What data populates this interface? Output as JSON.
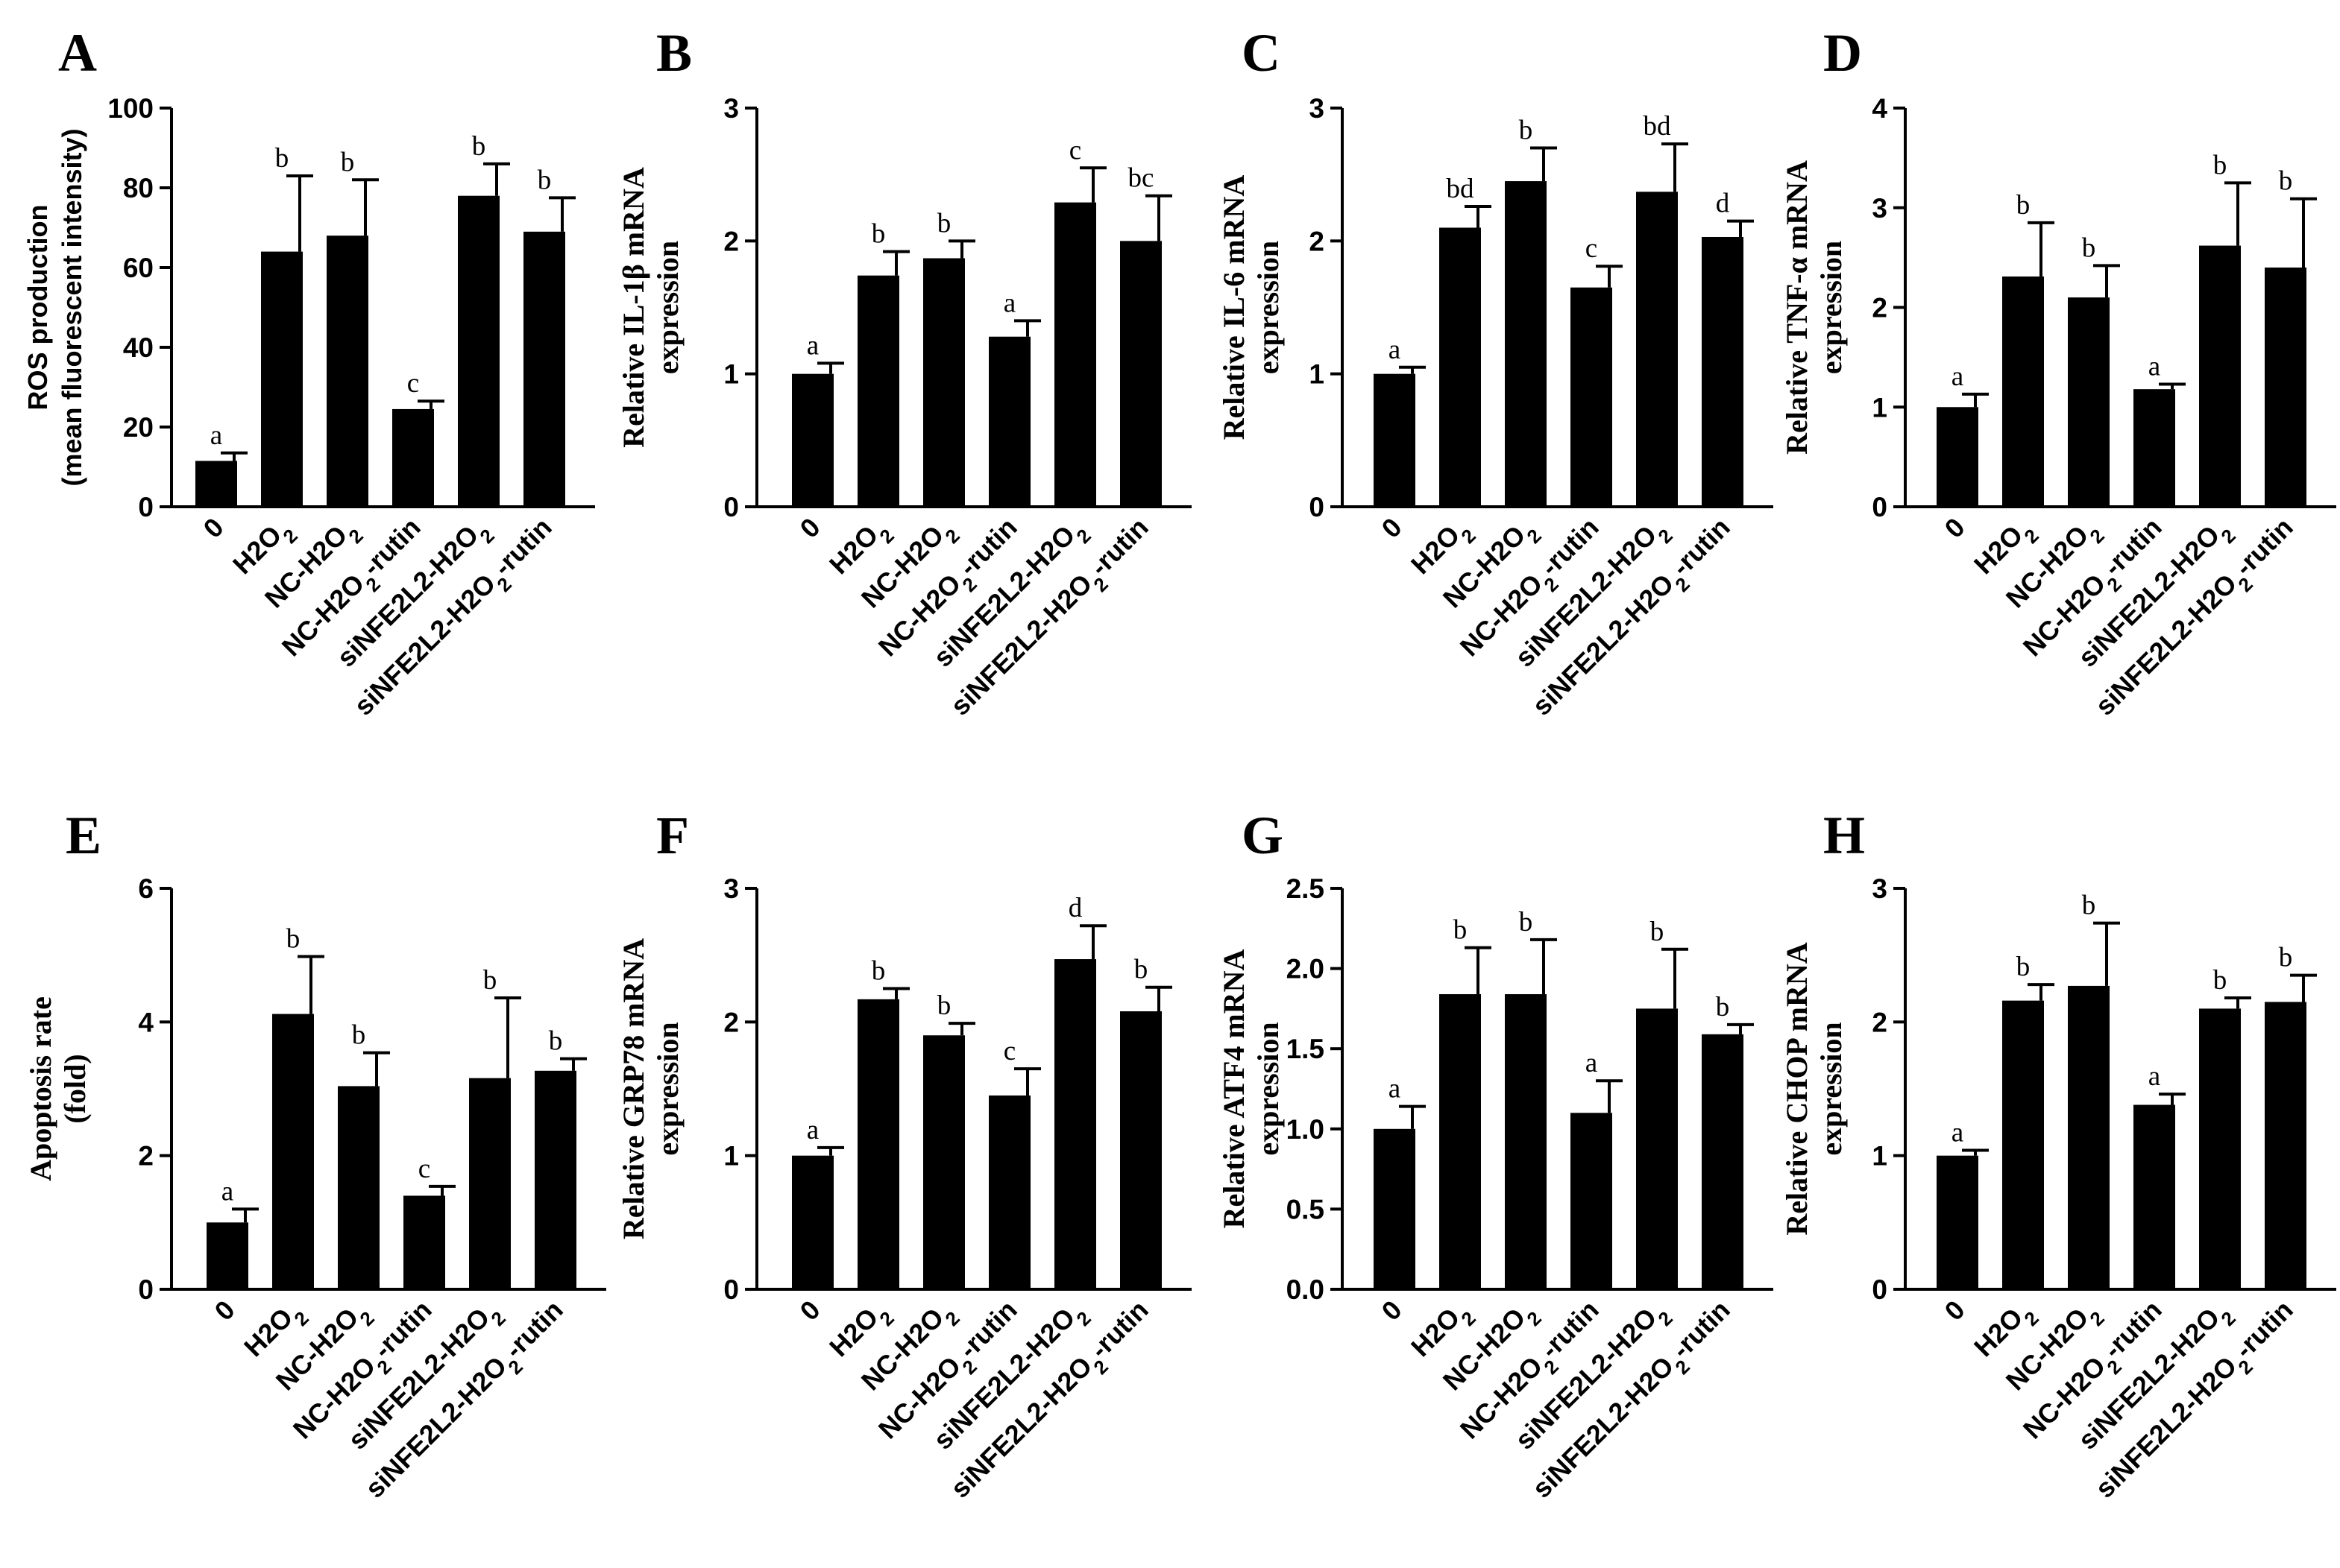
{
  "figure": {
    "categories": [
      "0",
      "H2O2",
      "NC-H2O2",
      "NC-H2O2-rutin",
      "siNFE2L2-H2O2",
      "siNFE2L2-H2O2-rutin"
    ]
  },
  "chart_data": [
    {
      "type": "bar",
      "panel": "A",
      "ylabel": [
        "ROS production",
        "(mean fluorescent intensity)"
      ],
      "categories": [
        "0",
        "H2O2",
        "NC-H2O2",
        "NC-H2O2-rutin",
        "siNFE2L2-H2O2",
        "siNFE2L2-H2O2-rutin"
      ],
      "values": [
        11.5,
        64,
        68,
        24.5,
        78,
        69
      ],
      "errors": [
        2,
        19,
        14,
        2,
        8,
        8.5
      ],
      "significance": [
        "a",
        "b",
        "b",
        "c",
        "b",
        "b"
      ],
      "ylim": [
        0,
        100
      ],
      "yticks": [
        "0",
        "20",
        "40",
        "60",
        "80",
        "100"
      ]
    },
    {
      "type": "bar",
      "panel": "B",
      "ylabel": [
        "Relative IL-1β mRNA",
        "expression"
      ],
      "categories": [
        "0",
        "H2O2",
        "NC-H2O2",
        "NC-H2O2-rutin",
        "siNFE2L2-H2O2",
        "siNFE2L2-H2O2-rutin"
      ],
      "values": [
        1.0,
        1.74,
        1.87,
        1.28,
        2.29,
        2.0
      ],
      "errors": [
        0.08,
        0.18,
        0.13,
        0.12,
        0.26,
        0.34
      ],
      "significance": [
        "a",
        "b",
        "b",
        "a",
        "c",
        "bc"
      ],
      "ylim": [
        0,
        3
      ],
      "yticks": [
        "0",
        "1",
        "2",
        "3"
      ]
    },
    {
      "type": "bar",
      "panel": "C",
      "ylabel": [
        "Relative IL-6 mRNA",
        "expression"
      ],
      "categories": [
        "0",
        "H2O2",
        "NC-H2O2",
        "NC-H2O2-rutin",
        "siNFE2L2-H2O2",
        "siNFE2L2-H2O2-rutin"
      ],
      "values": [
        1.0,
        2.1,
        2.45,
        1.65,
        2.37,
        2.03
      ],
      "errors": [
        0.05,
        0.16,
        0.25,
        0.16,
        0.36,
        0.12
      ],
      "significance": [
        "a",
        "bd",
        "b",
        "c",
        "bd",
        "d"
      ],
      "ylim": [
        0,
        3
      ],
      "yticks": [
        "0",
        "1",
        "2",
        "3"
      ]
    },
    {
      "type": "bar",
      "panel": "D",
      "ylabel": [
        "Relative TNF-α mRNA",
        "expression"
      ],
      "categories": [
        "0",
        "H2O2",
        "NC-H2O2",
        "NC-H2O2-rutin",
        "siNFE2L2-H2O2",
        "siNFE2L2-H2O2-rutin"
      ],
      "values": [
        1.0,
        2.31,
        2.1,
        1.18,
        2.62,
        2.4
      ],
      "errors": [
        0.13,
        0.54,
        0.32,
        0.05,
        0.63,
        0.69
      ],
      "significance": [
        "a",
        "b",
        "b",
        "a",
        "b",
        "b"
      ],
      "ylim": [
        0,
        4
      ],
      "yticks": [
        "0",
        "1",
        "2",
        "3",
        "4"
      ]
    },
    {
      "type": "bar",
      "panel": "E",
      "ylabel": [
        "Apoptosis rate",
        "(fold)"
      ],
      "categories": [
        "0",
        "H2O2",
        "NC-H2O2",
        "NC-H2O2-rutin",
        "siNFE2L2-H2O2",
        "siNFE2L2-H2O2-rutin"
      ],
      "values": [
        1.0,
        4.12,
        3.04,
        1.4,
        3.16,
        3.27
      ],
      "errors": [
        0.2,
        0.86,
        0.5,
        0.14,
        1.2,
        0.18
      ],
      "significance": [
        "a",
        "b",
        "b",
        "c",
        "b",
        "b"
      ],
      "ylim": [
        0,
        6
      ],
      "yticks": [
        "0",
        "2",
        "4",
        "6"
      ]
    },
    {
      "type": "bar",
      "panel": "F",
      "ylabel": [
        "Relative GRP78 mRNA",
        "expression"
      ],
      "categories": [
        "0",
        "H2O2",
        "NC-H2O2",
        "NC-H2O2-rutin",
        "siNFE2L2-H2O2",
        "siNFE2L2-H2O2-rutin"
      ],
      "values": [
        1.0,
        2.17,
        1.9,
        1.45,
        2.47,
        2.08
      ],
      "errors": [
        0.06,
        0.08,
        0.09,
        0.2,
        0.25,
        0.18
      ],
      "significance": [
        "a",
        "b",
        "b",
        "c",
        "d",
        "b"
      ],
      "ylim": [
        0,
        3
      ],
      "yticks": [
        "0",
        "1",
        "2",
        "3"
      ]
    },
    {
      "type": "bar",
      "panel": "G",
      "ylabel": [
        "Relative ATF4 mRNA",
        "expression"
      ],
      "categories": [
        "0",
        "H2O2",
        "NC-H2O2",
        "NC-H2O2-rutin",
        "siNFE2L2-H2O2",
        "siNFE2L2-H2O2-rutin"
      ],
      "values": [
        1.0,
        1.84,
        1.84,
        1.1,
        1.75,
        1.59
      ],
      "errors": [
        0.14,
        0.29,
        0.34,
        0.2,
        0.37,
        0.06
      ],
      "significance": [
        "a",
        "b",
        "b",
        "a",
        "b",
        "b"
      ],
      "ylim": [
        0,
        2.5
      ],
      "yticks": [
        "0.0",
        "0.5",
        "1.0",
        "1.5",
        "2.0",
        "2.5"
      ]
    },
    {
      "type": "bar",
      "panel": "H",
      "ylabel": [
        "Relative CHOP mRNA",
        "expression"
      ],
      "categories": [
        "0",
        "H2O2",
        "NC-H2O2",
        "NC-H2O2-rutin",
        "siNFE2L2-H2O2",
        "siNFE2L2-H2O2-rutin"
      ],
      "values": [
        1.0,
        2.16,
        2.27,
        1.38,
        2.1,
        2.15
      ],
      "errors": [
        0.04,
        0.12,
        0.47,
        0.08,
        0.08,
        0.2
      ],
      "significance": [
        "a",
        "b",
        "b",
        "a",
        "b",
        "b"
      ],
      "ylim": [
        0,
        3
      ],
      "yticks": [
        "0",
        "1",
        "2",
        "3"
      ]
    }
  ]
}
